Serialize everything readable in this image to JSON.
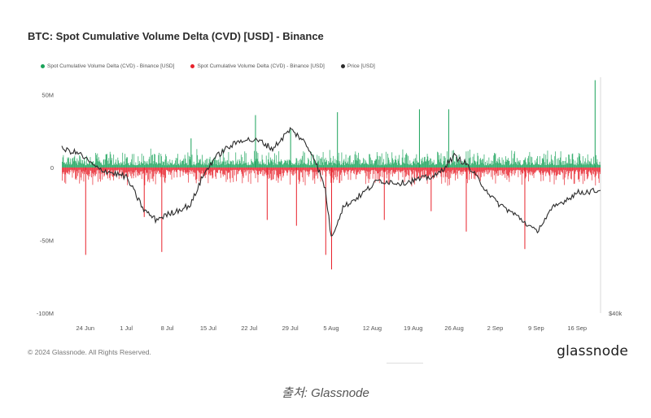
{
  "chart_data": {
    "type": "bar",
    "title": "BTC: Spot Cumulative Volume Delta (CVD) [USD] - Binance",
    "series": [
      {
        "name": "Spot Cumulative Volume Delta (CVD) - Binance [USD]",
        "color": "#1aa35a",
        "kind": "bar-positive"
      },
      {
        "name": "Spot Cumulative Volume Delta (CVD) - Binance [USD]",
        "color": "#e8222b",
        "kind": "bar-negative"
      },
      {
        "name": "Price [USD]",
        "color": "#2b2b2b",
        "kind": "line"
      }
    ],
    "y_left": {
      "ticks": [
        "50M",
        "0",
        "-50M",
        "-100M"
      ],
      "values": [
        50,
        0,
        -50,
        -100
      ],
      "range": [
        -100,
        62
      ]
    },
    "y_right": {
      "ticks": [
        "$40k"
      ]
    },
    "x_ticks": [
      "24 Jun",
      "1 Jul",
      "8 Jul",
      "15 Jul",
      "22 Jul",
      "29 Jul",
      "5 Aug",
      "12 Aug",
      "19 Aug",
      "26 Aug",
      "2 Sep",
      "9 Sep",
      "16 Sep"
    ],
    "x_range": [
      "2024-06-20",
      "2024-09-20"
    ],
    "spikes": [
      {
        "date": "2024-06-24",
        "value": -60
      },
      {
        "date": "2024-07-07",
        "value": -58
      },
      {
        "date": "2024-07-04",
        "value": -34
      },
      {
        "date": "2024-07-25",
        "value": -36
      },
      {
        "date": "2024-07-30",
        "value": -40
      },
      {
        "date": "2024-08-04",
        "value": -60
      },
      {
        "date": "2024-08-05",
        "value": -70
      },
      {
        "date": "2024-08-06",
        "value": 38
      },
      {
        "date": "2024-08-20",
        "value": 40
      },
      {
        "date": "2024-08-25",
        "value": 40
      },
      {
        "date": "2024-08-28",
        "value": -44
      },
      {
        "date": "2024-09-07",
        "value": -56
      },
      {
        "date": "2024-09-19",
        "value": 60
      },
      {
        "date": "2024-07-12",
        "value": 20
      },
      {
        "date": "2024-07-23",
        "value": 36
      },
      {
        "date": "2024-07-29",
        "value": 26
      },
      {
        "date": "2024-08-14",
        "value": -36
      },
      {
        "date": "2024-08-22",
        "value": -30
      }
    ],
    "price_path": [
      {
        "date": "2024-06-20",
        "value": 0.78
      },
      {
        "date": "2024-06-23",
        "value": 0.74
      },
      {
        "date": "2024-06-26",
        "value": 0.62
      },
      {
        "date": "2024-07-01",
        "value": 0.55
      },
      {
        "date": "2024-07-04",
        "value": 0.28
      },
      {
        "date": "2024-07-06",
        "value": 0.2
      },
      {
        "date": "2024-07-09",
        "value": 0.26
      },
      {
        "date": "2024-07-12",
        "value": 0.32
      },
      {
        "date": "2024-07-14",
        "value": 0.55
      },
      {
        "date": "2024-07-16",
        "value": 0.7
      },
      {
        "date": "2024-07-18",
        "value": 0.78
      },
      {
        "date": "2024-07-21",
        "value": 0.86
      },
      {
        "date": "2024-07-24",
        "value": 0.84
      },
      {
        "date": "2024-07-26",
        "value": 0.78
      },
      {
        "date": "2024-07-29",
        "value": 0.94
      },
      {
        "date": "2024-07-31",
        "value": 0.86
      },
      {
        "date": "2024-08-02",
        "value": 0.72
      },
      {
        "date": "2024-08-04",
        "value": 0.45
      },
      {
        "date": "2024-08-05",
        "value": 0.05
      },
      {
        "date": "2024-08-07",
        "value": 0.3
      },
      {
        "date": "2024-08-10",
        "value": 0.4
      },
      {
        "date": "2024-08-13",
        "value": 0.52
      },
      {
        "date": "2024-08-17",
        "value": 0.5
      },
      {
        "date": "2024-08-23",
        "value": 0.56
      },
      {
        "date": "2024-08-26",
        "value": 0.72
      },
      {
        "date": "2024-08-28",
        "value": 0.66
      },
      {
        "date": "2024-09-02",
        "value": 0.35
      },
      {
        "date": "2024-09-06",
        "value": 0.22
      },
      {
        "date": "2024-09-09",
        "value": 0.1
      },
      {
        "date": "2024-09-12",
        "value": 0.3
      },
      {
        "date": "2024-09-16",
        "value": 0.42
      },
      {
        "date": "2024-09-20",
        "value": 0.44
      }
    ]
  },
  "footer": {
    "copyright": "© 2024 Glassnode. All Rights Reserved.",
    "logo": "glassnode"
  },
  "caption": "출처: Glassnode"
}
